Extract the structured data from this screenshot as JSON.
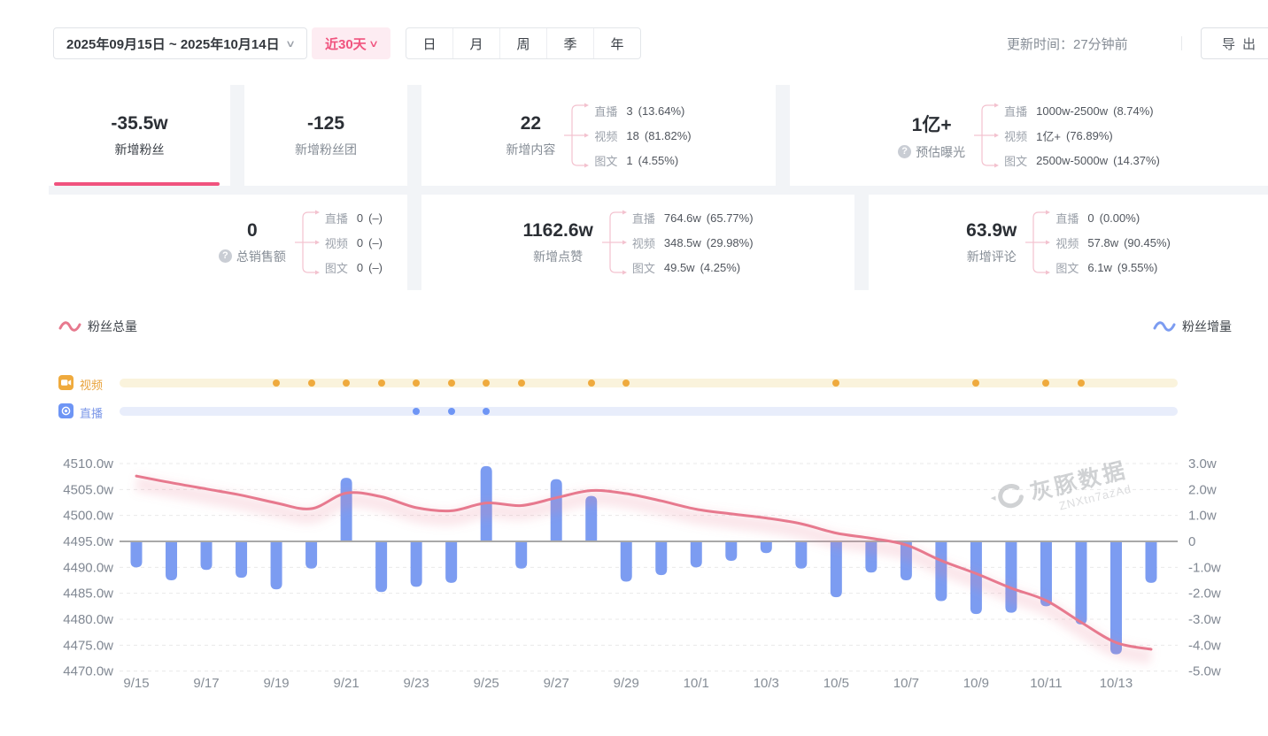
{
  "topbar": {
    "date_range": "2025年09月15日 ~ 2025年10月14日",
    "quick_range": "近30天",
    "period_tabs": [
      "日",
      "月",
      "周",
      "季",
      "年"
    ],
    "update_time": "更新时间：27分钟前",
    "export_label": "导出"
  },
  "icons": {
    "chevron_down": "∨",
    "help": "?"
  },
  "stats": {
    "cards": [
      {
        "value": "-35.5w",
        "label": "新增粉丝"
      },
      {
        "value": "-125",
        "label": "新增粉丝团"
      },
      {
        "value": "22",
        "label": "新增内容",
        "breakdown": [
          {
            "name": "直播",
            "value": "3",
            "pct": "(13.64%)"
          },
          {
            "name": "视频",
            "value": "18",
            "pct": "(81.82%)"
          },
          {
            "name": "图文",
            "value": "1",
            "pct": "(4.55%)"
          }
        ]
      },
      {
        "value": "1亿+",
        "label": "预估曝光",
        "breakdown": [
          {
            "name": "直播",
            "value": "1000w-2500w",
            "pct": "(8.74%)"
          },
          {
            "name": "视频",
            "value": "1亿+",
            "pct": "(76.89%)"
          },
          {
            "name": "图文",
            "value": "2500w-5000w",
            "pct": "(14.37%)"
          }
        ]
      },
      {
        "value": "0",
        "label": "总销售额",
        "breakdown": [
          {
            "name": "直播",
            "value": "0",
            "pct": "(–)"
          },
          {
            "name": "视频",
            "value": "0",
            "pct": "(–)"
          },
          {
            "name": "图文",
            "value": "0",
            "pct": "(–)"
          }
        ]
      },
      {
        "value": "1162.6w",
        "label": "新增点赞",
        "breakdown": [
          {
            "name": "直播",
            "value": "764.6w",
            "pct": "(65.77%)"
          },
          {
            "name": "视频",
            "value": "348.5w",
            "pct": "(29.98%)"
          },
          {
            "name": "图文",
            "value": "49.5w",
            "pct": "(4.25%)"
          }
        ]
      },
      {
        "value": "63.9w",
        "label": "新增评论",
        "breakdown": [
          {
            "name": "直播",
            "value": "0",
            "pct": "(0.00%)"
          },
          {
            "name": "视频",
            "value": "57.8w",
            "pct": "(90.45%)"
          },
          {
            "name": "图文",
            "value": "6.1w",
            "pct": "(9.55%)"
          }
        ]
      }
    ]
  },
  "legend": {
    "left": "粉丝总量",
    "right": "粉丝增量"
  },
  "timeline": {
    "video_label": "视频",
    "live_label": "直播"
  },
  "watermark": {
    "brand": "灰豚数据",
    "code": "ZNXtn7azAd"
  },
  "chart_data": {
    "type": "line+bar",
    "x": [
      "9/15",
      "9/16",
      "9/17",
      "9/18",
      "9/19",
      "9/20",
      "9/21",
      "9/22",
      "9/23",
      "9/24",
      "9/25",
      "9/26",
      "9/27",
      "9/28",
      "9/29",
      "9/30",
      "10/1",
      "10/2",
      "10/3",
      "10/4",
      "10/5",
      "10/6",
      "10/7",
      "10/8",
      "10/9",
      "10/10",
      "10/11",
      "10/12",
      "10/13",
      "10/14"
    ],
    "x_tick_step": 2,
    "series": [
      {
        "name": "粉丝总量",
        "type": "line",
        "axis": "left",
        "color": "#e7798e",
        "values": [
          4507.6,
          4506.3,
          4505.1,
          4503.9,
          4502.4,
          4501.3,
          4504.3,
          4503.6,
          4501.5,
          4500.9,
          4502.4,
          4501.9,
          4503.4,
          4504.8,
          4504.2,
          4502.8,
          4501.2,
          4500.3,
          4499.5,
          4498.4,
          4496.6,
          4495.6,
          4494.3,
          4491.3,
          4488.8,
          4486.0,
          4483.6,
          4479.4,
          4475.5,
          4474.2
        ]
      },
      {
        "name": "粉丝增量",
        "type": "bar",
        "axis": "right",
        "color": "#7c9cf1",
        "values": [
          -1.0,
          -1.5,
          -1.1,
          -1.4,
          -1.85,
          -1.05,
          2.45,
          -1.95,
          -1.75,
          -1.6,
          2.9,
          -1.05,
          2.4,
          1.75,
          -1.55,
          -1.3,
          -1.0,
          -0.75,
          -0.45,
          -1.05,
          -2.15,
          -1.2,
          -1.5,
          -2.3,
          -2.8,
          -2.75,
          -2.5,
          -3.2,
          -4.35,
          -1.6
        ]
      }
    ],
    "left_axis": {
      "min": 4470,
      "max": 4510,
      "tick_values": [
        4510,
        4505,
        4500,
        4495,
        4490,
        4485,
        4480,
        4475,
        4470
      ],
      "tick_labels": [
        "4510.0w",
        "4505.0w",
        "4500.0w",
        "4495.0w",
        "4490.0w",
        "4485.0w",
        "4480.0w",
        "4475.0w",
        "4470.0w"
      ]
    },
    "right_axis": {
      "min": -5,
      "max": 3,
      "zero_at_left_value": 4495,
      "tick_labels": [
        "3.0w",
        "2.0w",
        "1.0w",
        "0",
        "-1.0w",
        "-2.0w",
        "-3.0w",
        "-4.0w",
        "-5.0w"
      ]
    },
    "grid": "dashed-horizontal",
    "markers": {
      "video_days": [
        "9/19",
        "9/20",
        "9/21",
        "9/22",
        "9/23",
        "9/24",
        "9/25",
        "9/26",
        "9/28",
        "9/29",
        "10/5",
        "10/9",
        "10/11",
        "10/12"
      ],
      "live_days": [
        "9/23",
        "9/24",
        "9/25"
      ]
    }
  }
}
